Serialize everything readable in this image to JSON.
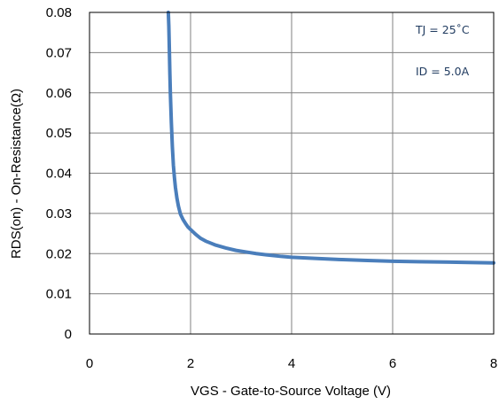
{
  "chart_data": {
    "type": "line",
    "title": "",
    "xlabel": "VGS - Gate-to-Source Voltage (V)",
    "ylabel": "RDS(on) - On-Resistance(Ω)",
    "xlim": [
      0,
      8
    ],
    "ylim": [
      0,
      0.08
    ],
    "x_ticks": [
      0,
      2,
      4,
      6,
      8
    ],
    "x_tick_labels": [
      "0",
      "2",
      "4",
      "6",
      "8"
    ],
    "y_ticks": [
      0,
      0.01,
      0.02,
      0.03,
      0.04,
      0.05,
      0.06,
      0.07,
      0.08
    ],
    "y_tick_labels": [
      "0",
      "0.01",
      "0.02",
      "0.03",
      "0.04",
      "0.05",
      "0.06",
      "0.07",
      "0.08"
    ],
    "grid": true,
    "legend": "none",
    "annotations": [
      {
        "text": "TJ = 25˚C"
      },
      {
        "text": "ID = 5.0A"
      }
    ],
    "series": [
      {
        "color": "#4a7ebb",
        "x": [
          1.56,
          1.57,
          1.58,
          1.59,
          1.6,
          1.62,
          1.64,
          1.66,
          1.68,
          1.7,
          1.73,
          1.76,
          1.8,
          1.85,
          1.9,
          1.95,
          2.0,
          2.1,
          2.2,
          2.3,
          2.4,
          2.5,
          2.7,
          2.9,
          3.1,
          3.3,
          3.5,
          3.8,
          4.0,
          4.5,
          5.0,
          5.5,
          6.0,
          6.5,
          7.0,
          7.5,
          8.0
        ],
        "y": [
          0.08,
          0.0765,
          0.071,
          0.065,
          0.06,
          0.0525,
          0.0465,
          0.042,
          0.039,
          0.0365,
          0.0338,
          0.0318,
          0.0298,
          0.0285,
          0.0275,
          0.0266,
          0.026,
          0.0248,
          0.0238,
          0.0231,
          0.0226,
          0.0221,
          0.0214,
          0.0208,
          0.0204,
          0.02,
          0.0197,
          0.0193,
          0.0191,
          0.0188,
          0.0185,
          0.0183,
          0.0181,
          0.018,
          0.0179,
          0.0178,
          0.0177
        ]
      }
    ]
  }
}
